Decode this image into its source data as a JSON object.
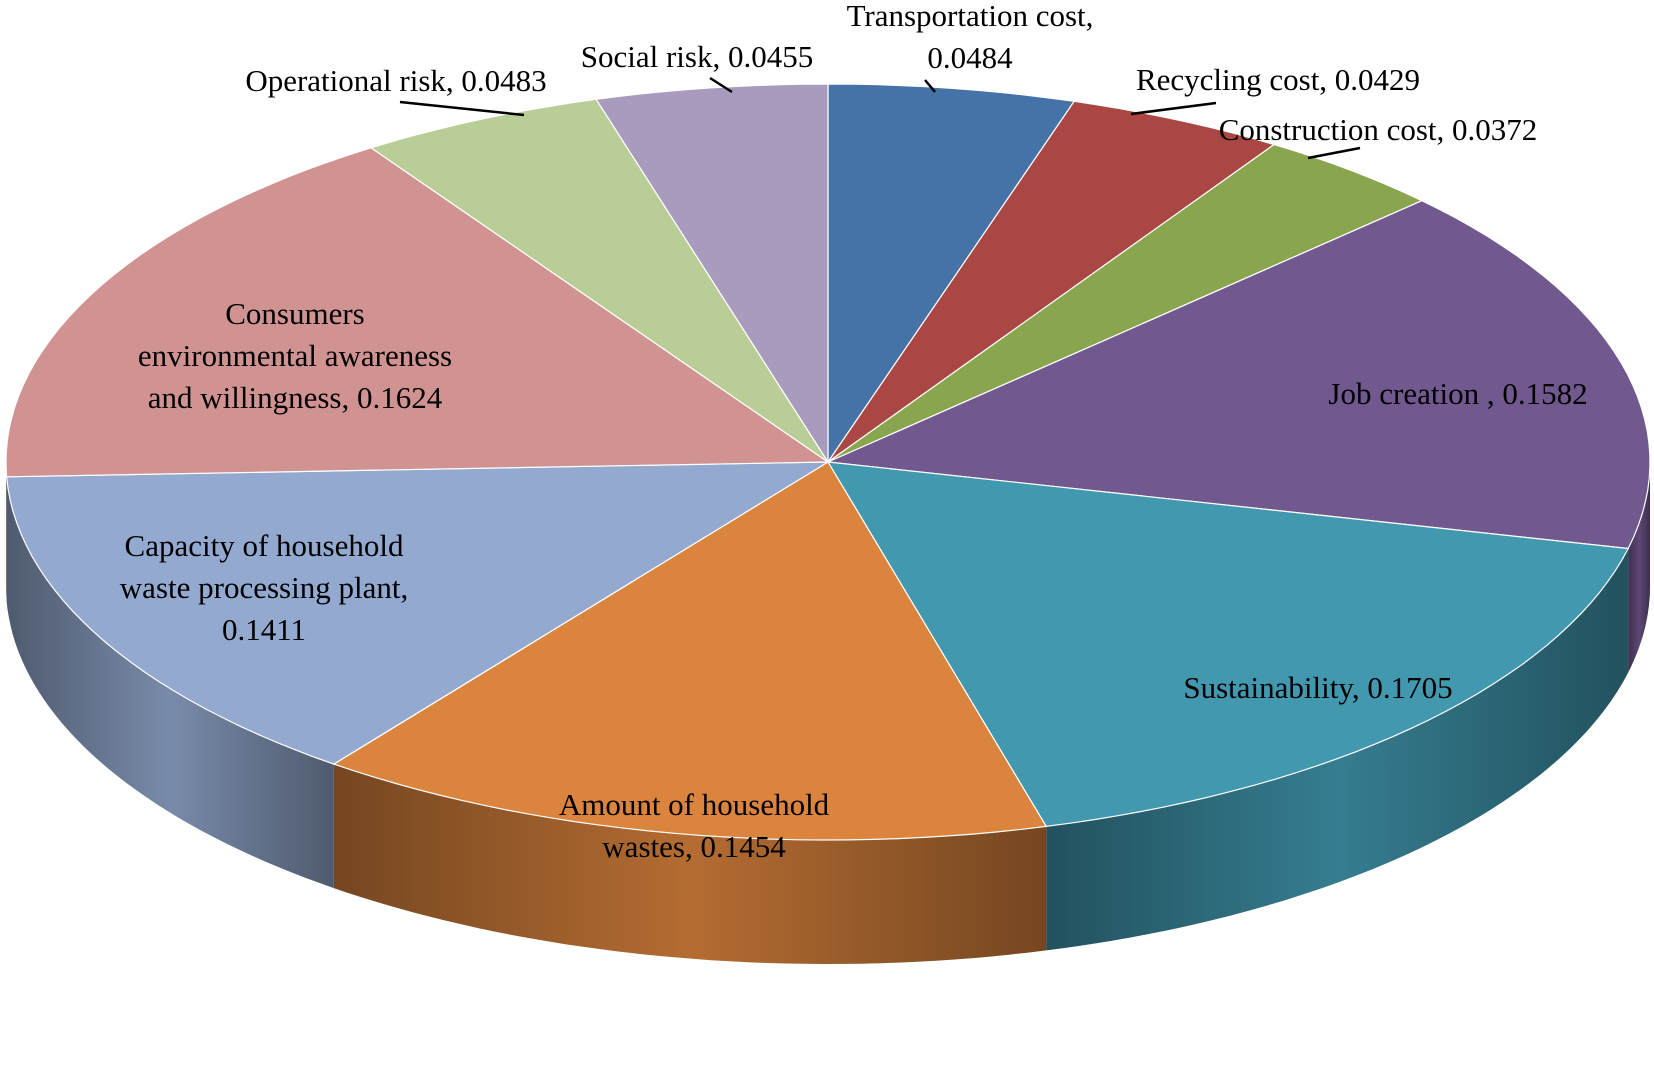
{
  "chart_data": {
    "type": "pie",
    "style": "3d-exploded-none",
    "title": "",
    "slices": [
      {
        "key": "transport",
        "label": "Transportation cost, 0.0484",
        "name": "Transportation cost",
        "value": 0.0484,
        "color": "#4572a7",
        "label_lines": [
          "Transportation cost,",
          "0.0484"
        ]
      },
      {
        "key": "recycling",
        "label": "Recycling cost, 0.0429",
        "name": "Recycling cost",
        "value": 0.0429,
        "color": "#aa4643",
        "label_lines": [
          "Recycling cost, 0.0429"
        ]
      },
      {
        "key": "construction",
        "label": "Construction cost, 0.0372",
        "name": "Construction cost",
        "value": 0.0372,
        "color": "#89a54e",
        "label_lines": [
          "Construction cost, 0.0372"
        ]
      },
      {
        "key": "job",
        "label": "Job creation , 0.1582",
        "name": "Job creation",
        "value": 0.1582,
        "color": "#71588f",
        "label_lines": [
          "Job creation , 0.1582"
        ]
      },
      {
        "key": "sustainability",
        "label": "Sustainability, 0.1705",
        "name": "Sustainability",
        "value": 0.1705,
        "color": "#4198af",
        "label_lines": [
          "Sustainability, 0.1705"
        ]
      },
      {
        "key": "amount",
        "label": "Amount of household wastes, 0.1454",
        "name": "Amount of household wastes",
        "value": 0.1454,
        "color": "#db843d",
        "label_lines": [
          "Amount of household",
          "wastes, 0.1454"
        ]
      },
      {
        "key": "capacity",
        "label": "Capacity of household waste processing plant, 0.1411",
        "name": "Capacity of household waste processing plant",
        "value": 0.1411,
        "color": "#93a9cf",
        "label_lines": [
          "Capacity of household",
          "waste processing plant,",
          "0.1411"
        ]
      },
      {
        "key": "consumers",
        "label": "Consumers environmental awareness and willingness, 0.1624",
        "name": "Consumers environmental awareness and willingness",
        "value": 0.1624,
        "color": "#d19392",
        "label_lines": [
          "Consumers",
          "environmental awareness",
          "and willingness, 0.1624"
        ]
      },
      {
        "key": "operational",
        "label": "Operational risk, 0.0483",
        "name": "Operational risk",
        "value": 0.0483,
        "color": "#b9cd96",
        "label_lines": [
          "Operational risk, 0.0483"
        ]
      },
      {
        "key": "social",
        "label": "Social risk, 0.0455",
        "name": "Social risk",
        "value": 0.0455,
        "color": "#a99bbd",
        "label_lines": [
          "Social risk, 0.0455"
        ]
      }
    ],
    "legend": "none",
    "grid": false
  }
}
